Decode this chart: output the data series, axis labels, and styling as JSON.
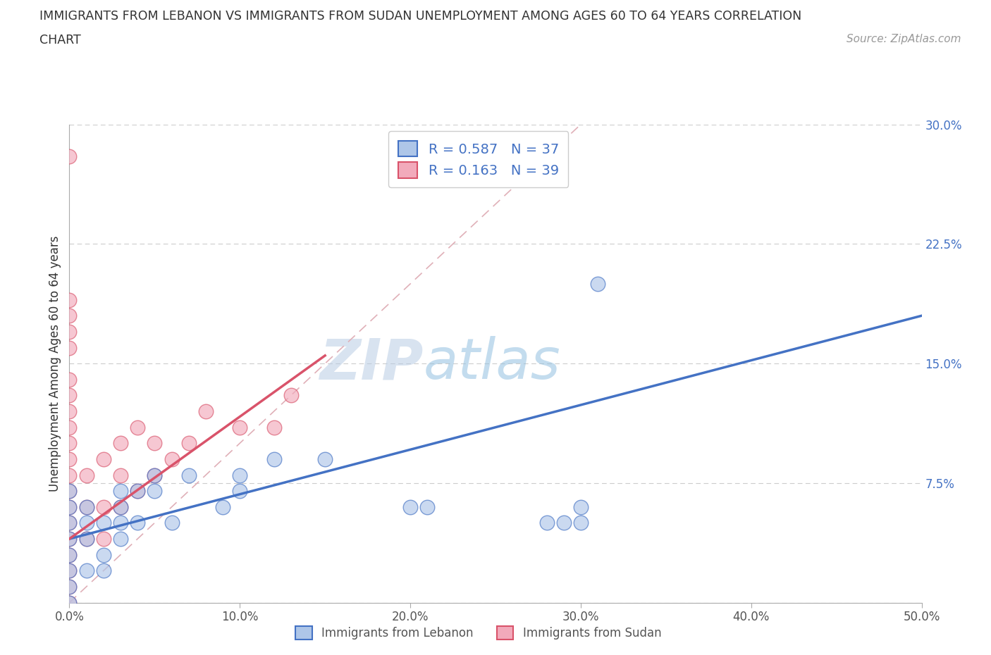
{
  "title_line1": "IMMIGRANTS FROM LEBANON VS IMMIGRANTS FROM SUDAN UNEMPLOYMENT AMONG AGES 60 TO 64 YEARS CORRELATION",
  "title_line2": "CHART",
  "source": "Source: ZipAtlas.com",
  "ylabel": "Unemployment Among Ages 60 to 64 years",
  "xlim": [
    0.0,
    0.5
  ],
  "ylim": [
    0.0,
    0.3
  ],
  "xticks": [
    0.0,
    0.1,
    0.2,
    0.3,
    0.4,
    0.5
  ],
  "yticks": [
    0.0,
    0.075,
    0.15,
    0.225,
    0.3
  ],
  "xticklabels": [
    "0.0%",
    "10.0%",
    "20.0%",
    "30.0%",
    "40.0%",
    "50.0%"
  ],
  "yticklabels": [
    "",
    "7.5%",
    "15.0%",
    "22.5%",
    "30.0%"
  ],
  "lebanon_color": "#aec6e8",
  "sudan_color": "#f2aabb",
  "lebanon_line_color": "#4472c4",
  "sudan_line_color": "#d9536a",
  "diagonal_color": "#e0b0b8",
  "R_lebanon": 0.587,
  "N_lebanon": 37,
  "R_sudan": 0.163,
  "N_sudan": 39,
  "watermark_zip": "ZIP",
  "watermark_atlas": "atlas",
  "lebanon_scatter_x": [
    0.0,
    0.0,
    0.0,
    0.0,
    0.0,
    0.0,
    0.0,
    0.0,
    0.01,
    0.01,
    0.01,
    0.01,
    0.02,
    0.02,
    0.02,
    0.03,
    0.03,
    0.03,
    0.03,
    0.04,
    0.04,
    0.05,
    0.05,
    0.06,
    0.07,
    0.09,
    0.1,
    0.1,
    0.12,
    0.15,
    0.2,
    0.21,
    0.28,
    0.29,
    0.3,
    0.3,
    0.31
  ],
  "lebanon_scatter_y": [
    0.0,
    0.01,
    0.02,
    0.03,
    0.04,
    0.05,
    0.06,
    0.07,
    0.02,
    0.04,
    0.05,
    0.06,
    0.02,
    0.03,
    0.05,
    0.04,
    0.05,
    0.06,
    0.07,
    0.05,
    0.07,
    0.07,
    0.08,
    0.05,
    0.08,
    0.06,
    0.07,
    0.08,
    0.09,
    0.09,
    0.06,
    0.06,
    0.05,
    0.05,
    0.05,
    0.06,
    0.2
  ],
  "sudan_scatter_x": [
    0.0,
    0.0,
    0.0,
    0.0,
    0.0,
    0.0,
    0.0,
    0.0,
    0.0,
    0.0,
    0.01,
    0.01,
    0.01,
    0.02,
    0.02,
    0.02,
    0.03,
    0.03,
    0.03,
    0.04,
    0.04,
    0.05,
    0.05,
    0.06,
    0.07,
    0.08,
    0.1,
    0.12,
    0.13,
    0.0,
    0.0,
    0.0,
    0.0,
    0.0,
    0.0,
    0.0,
    0.0,
    0.0,
    0.0
  ],
  "sudan_scatter_y": [
    0.0,
    0.01,
    0.02,
    0.03,
    0.04,
    0.05,
    0.06,
    0.07,
    0.08,
    0.28,
    0.04,
    0.06,
    0.08,
    0.04,
    0.06,
    0.09,
    0.06,
    0.08,
    0.1,
    0.07,
    0.11,
    0.08,
    0.1,
    0.09,
    0.1,
    0.12,
    0.11,
    0.11,
    0.13,
    0.09,
    0.1,
    0.11,
    0.12,
    0.13,
    0.14,
    0.16,
    0.17,
    0.18,
    0.19
  ],
  "leb_line_x0": 0.0,
  "leb_line_y0": 0.04,
  "leb_line_x1": 0.5,
  "leb_line_y1": 0.18,
  "sud_line_x0": 0.0,
  "sud_line_y0": 0.04,
  "sud_line_x1": 0.15,
  "sud_line_y1": 0.155
}
